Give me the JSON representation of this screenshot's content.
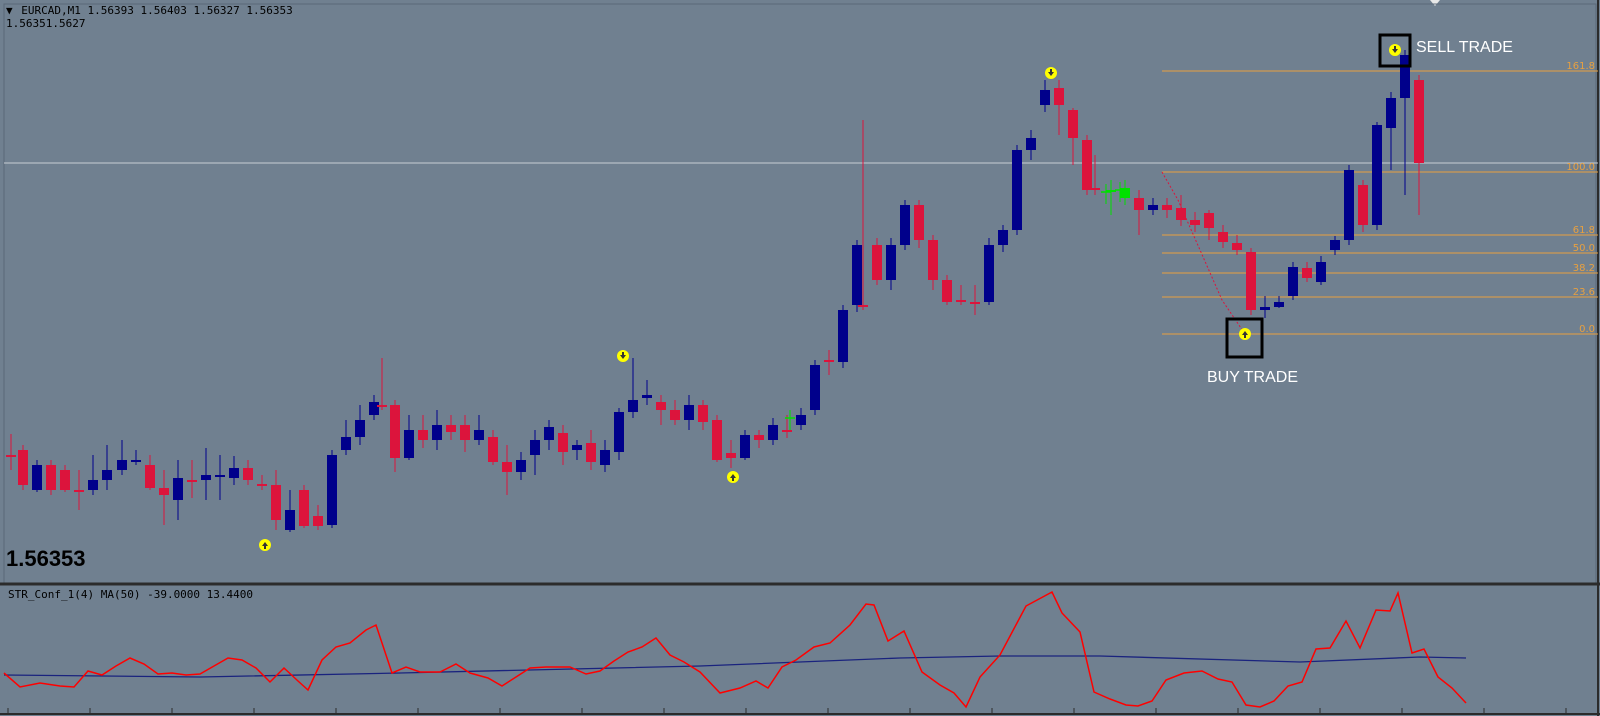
{
  "header": {
    "symbol": "EURCAD,M1",
    "ohlc": "1.56393 1.56403 1.56327 1.56353",
    "line2": "1.56351.5627"
  },
  "current_price": "1.56353",
  "oscillator": {
    "label": "STR_Conf_1(4) MA(50) -39.0000 13.4400"
  },
  "annotations": {
    "sell": "SELL TRADE",
    "buy": "BUY TRADE"
  },
  "fib_levels": [
    "161.8",
    "100.0",
    "61.8",
    "50.0",
    "38.2",
    "23.6",
    "0.0"
  ],
  "colors": {
    "background": "#708090",
    "bull_candle": "#00008b",
    "bear_candle": "#dc143c",
    "fib": "#e8a040",
    "signal_arrow": "#ffff00",
    "osc_signal": "#ff0000",
    "osc_ma": "#1a237e"
  }
}
